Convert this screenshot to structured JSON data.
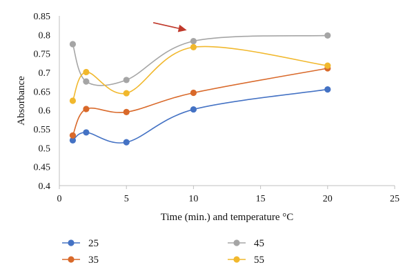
{
  "chart_data": {
    "type": "line",
    "xlabel": "Time (min.) and temperature °C",
    "ylabel": "Absorbance",
    "xlim": [
      0,
      25
    ],
    "ylim": [
      0.4,
      0.85
    ],
    "x_ticks": [
      "0",
      "5",
      "10",
      "15",
      "20",
      "25"
    ],
    "y_ticks": [
      "0.4",
      "0.45",
      "0.5",
      "0.55",
      "0.6",
      "0.65",
      "0.7",
      "0.75",
      "0.8",
      "0.85"
    ],
    "grid": false,
    "legend_position": "bottom",
    "x": [
      1,
      2,
      5,
      10,
      20
    ],
    "series": [
      {
        "name": "25",
        "color": "#4472C4",
        "values": [
          0.52,
          0.541,
          0.515,
          0.602,
          0.655
        ]
      },
      {
        "name": "35",
        "color": "#D9692A",
        "values": [
          0.533,
          0.603,
          0.595,
          0.646,
          0.711
        ]
      },
      {
        "name": "45",
        "color": "#A5A5A5",
        "values": [
          0.775,
          0.676,
          0.68,
          0.783,
          0.798
        ]
      },
      {
        "name": "55",
        "color": "#F1B82D",
        "values": [
          0.625,
          0.701,
          0.645,
          0.767,
          0.718
        ]
      }
    ],
    "annotations": [
      {
        "type": "arrow",
        "color": "#C0392B",
        "from": [
          7,
          0.832
        ],
        "to": [
          9.5,
          0.812
        ]
      }
    ]
  }
}
